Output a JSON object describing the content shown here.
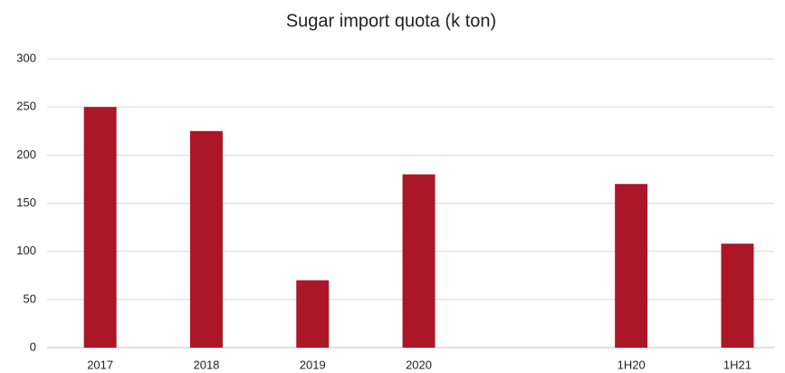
{
  "chart_data": {
    "type": "bar",
    "title": "Sugar import quota (k ton)",
    "categories": [
      "2017",
      "2018",
      "2019",
      "2020",
      null,
      "1H20",
      "1H21"
    ],
    "values": [
      250,
      225,
      70,
      180,
      null,
      170,
      108
    ],
    "color": "#ab1727",
    "ylim": [
      0,
      300
    ],
    "yticks": [
      0,
      50,
      100,
      150,
      200,
      250,
      300
    ],
    "grid": true
  }
}
